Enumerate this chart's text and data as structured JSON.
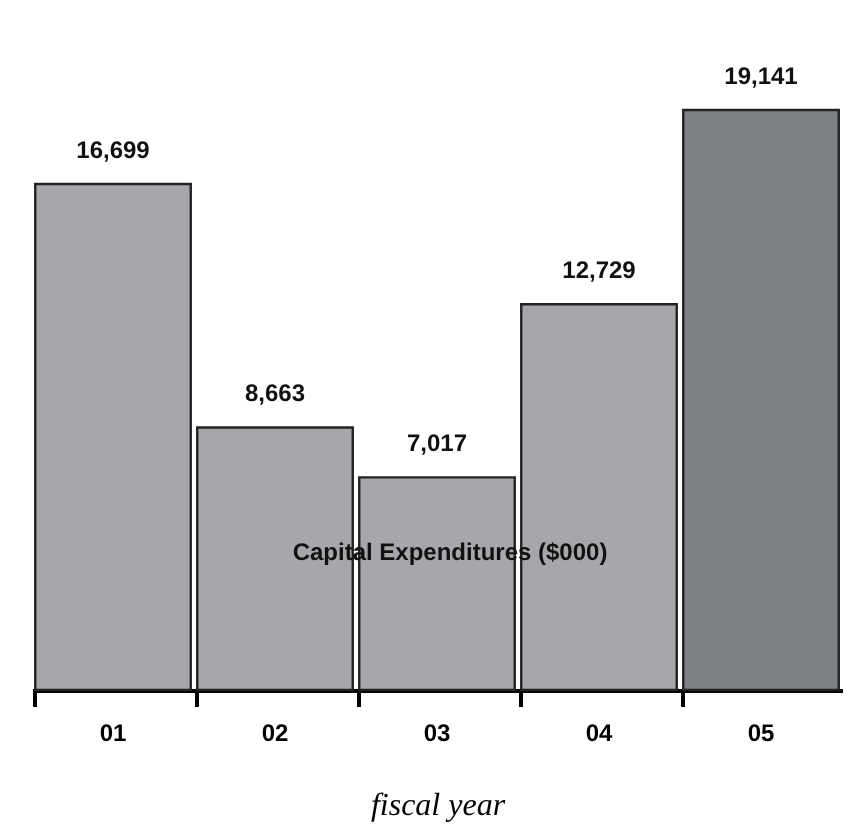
{
  "chart_data": {
    "type": "bar",
    "title": "Capital Expenditures ($000)",
    "xlabel": "fiscal year",
    "categories": [
      "01",
      "02",
      "03",
      "04",
      "05"
    ],
    "values": [
      16699,
      8663,
      7017,
      12729,
      19141
    ],
    "colors": [
      "#a7a6ab",
      "#a7a6ab",
      "#a7a6ab",
      "#a7a6ab",
      "#7d8084"
    ],
    "value_labels": [
      "16,699",
      "8,663",
      "7,017",
      "12,729",
      "19,141"
    ],
    "grid": false
  }
}
